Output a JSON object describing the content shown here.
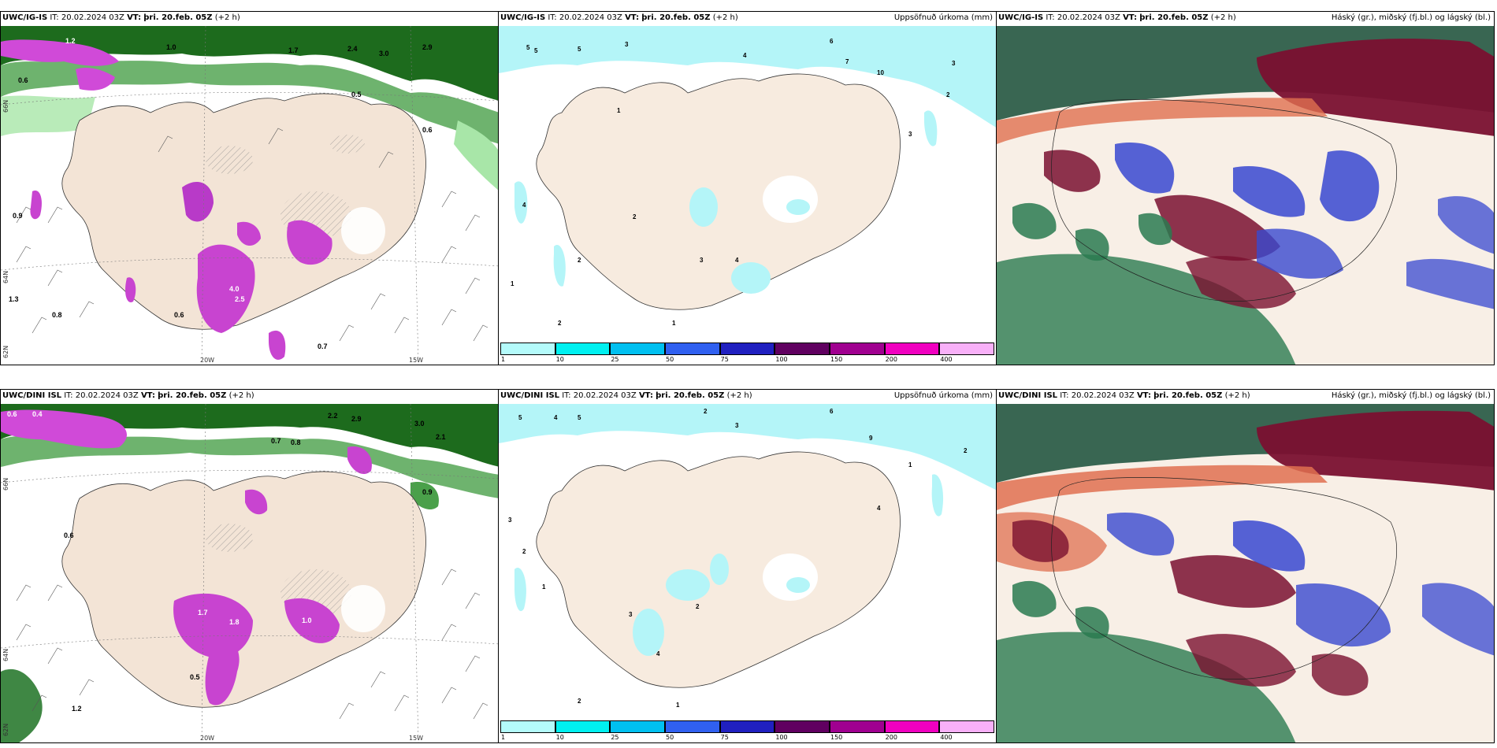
{
  "rows": [
    {
      "model": "UWC/IG-IS",
      "init_label": "IT:",
      "init": "20.02.2024 03Z",
      "valid_label": "VT:",
      "valid": "þri. 20.feb. 05Z",
      "lead": "(+2 h)"
    },
    {
      "model": "UWC/DINI ISL",
      "init_label": "IT:",
      "init": "20.02.2024 03Z",
      "valid_label": "VT:",
      "valid": "þri. 20.feb. 05Z",
      "lead": "(+2 h)"
    }
  ],
  "panel_titles": {
    "accumulated": "Uppsöfnuð úrkoma (mm)",
    "clouds": "Háský (gr.), miðský (fj.bl.) og lágský (bl.)"
  },
  "axis_labels": {
    "lon": [
      "20W",
      "15W"
    ],
    "lat": [
      "66N",
      "64N",
      "62N"
    ]
  },
  "colorbar": {
    "ticks": [
      "1",
      "10",
      "25",
      "50",
      "75",
      "100",
      "150",
      "200",
      "400"
    ],
    "colors": [
      "#b4fbfb",
      "#00f0f0",
      "#00c0f0",
      "#3060f0",
      "#2020c0",
      "#600060",
      "#a00090",
      "#f000c0",
      "#f8b0f8"
    ]
  },
  "colors": {
    "land": "#f3e4d6",
    "sea_precip_green_dark": "#1a6a1a",
    "sea_precip_green_light": "#a8e6a8",
    "precip_magenta": "#d04ad8",
    "accum_cyan": "#b4f5f8",
    "cloud_high": "#7a1030",
    "cloud_mid": "#3848d0",
    "cloud_low": "#2a7a50",
    "cloud_orange": "#e07050"
  },
  "precip_labels_top": [
    "0.6",
    "1.0",
    "1.7",
    "2.4",
    "3.0",
    "2.9",
    "0.5",
    "0.9",
    "0.6",
    "1.3",
    "0.8",
    "0.6",
    "2.5",
    "4.0",
    "1.2",
    "0.7"
  ],
  "precip_labels_bottom": [
    "0.6",
    "0.4",
    "2.2",
    "2.9",
    "3.0",
    "2.1",
    "0.7",
    "0.8",
    "0.9",
    "0.6",
    "1.7",
    "1.8",
    "1.0",
    "0.5",
    "1.2"
  ],
  "accum_labels_top": [
    "5",
    "5",
    "5",
    "3",
    "4",
    "6",
    "7",
    "10",
    "3",
    "2",
    "1",
    "3",
    "2",
    "4",
    "1",
    "2",
    "3",
    "4",
    "2",
    "1"
  ],
  "accum_labels_bottom": [
    "5",
    "4",
    "5",
    "2",
    "3",
    "6",
    "9",
    "2",
    "1",
    "3",
    "2",
    "4",
    "1",
    "2",
    "3",
    "4",
    "2",
    "1"
  ]
}
